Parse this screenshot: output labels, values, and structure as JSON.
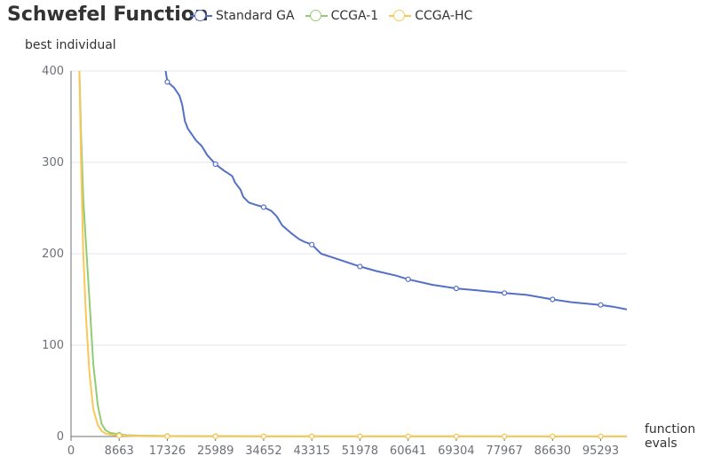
{
  "chart_data": {
    "type": "line",
    "title": "Schwefel Function",
    "ylabel": "best individual",
    "xlabel": "function evals",
    "ylim": [
      0,
      400
    ],
    "yticks": [
      0,
      100,
      200,
      300,
      400
    ],
    "xlim": [
      0,
      100000
    ],
    "xticks": [
      0,
      8663,
      17326,
      25989,
      34652,
      43315,
      51978,
      60641,
      69304,
      77967,
      86630,
      95293
    ],
    "legend_position": "top",
    "grid": true,
    "series": [
      {
        "name": "Standard GA",
        "color": "#5470c6",
        "x": [
          16500,
          17326,
          18500,
          19500,
          20000,
          20500,
          21000,
          22500,
          23500,
          24500,
          25989,
          27500,
          29000,
          29500,
          30500,
          31000,
          32000,
          33000,
          34652,
          36000,
          37000,
          38000,
          39500,
          41000,
          42000,
          43315,
          45000,
          47000,
          48500,
          50000,
          51978,
          55000,
          58500,
          60641,
          65000,
          69304,
          73000,
          77967,
          82000,
          86630,
          90000,
          95293,
          97500,
          100000
        ],
        "values": [
          420,
          388,
          382,
          373,
          363,
          345,
          337,
          324,
          318,
          308,
          298,
          291,
          285,
          278,
          270,
          262,
          256,
          254,
          251,
          247,
          241,
          231,
          223,
          216,
          213,
          210,
          200,
          196,
          193,
          190,
          186,
          181,
          176,
          172,
          166,
          162,
          160,
          157,
          155,
          150,
          147,
          144,
          142,
          139
        ]
      },
      {
        "name": "CCGA-1",
        "color": "#91cc75",
        "x": [
          1500,
          1800,
          2200,
          2700,
          3300,
          4000,
          4800,
          5500,
          6200,
          7000,
          8000,
          8663,
          10000,
          12000,
          15000,
          17326,
          25989,
          34652,
          43315,
          51978,
          60641,
          69304,
          77967,
          86630,
          95293,
          100000
        ],
        "values": [
          400,
          330,
          260,
          210,
          150,
          80,
          35,
          14,
          7,
          4,
          3,
          2,
          1.5,
          1,
          0.8,
          0.5,
          0.4,
          0.3,
          0.3,
          0.2,
          0.2,
          0.2,
          0.1,
          0.1,
          0.1,
          0.1
        ]
      },
      {
        "name": "CCGA-HC",
        "color": "#fac858",
        "x": [
          1500,
          1800,
          2200,
          2700,
          3300,
          4000,
          4800,
          5500,
          6300,
          7000,
          8000,
          8663,
          10000,
          12000,
          15000,
          17326,
          25989,
          34652,
          43315,
          51978,
          60641,
          69304,
          77967,
          86630,
          95293,
          100000
        ],
        "values": [
          400,
          300,
          200,
          130,
          70,
          30,
          13,
          6,
          3,
          2,
          1.5,
          1,
          0.8,
          0.5,
          0.3,
          0.2,
          0.1,
          0.1,
          0.1,
          0.1,
          0.1,
          0.1,
          0.1,
          0.1,
          0.1,
          0.1
        ]
      }
    ]
  }
}
